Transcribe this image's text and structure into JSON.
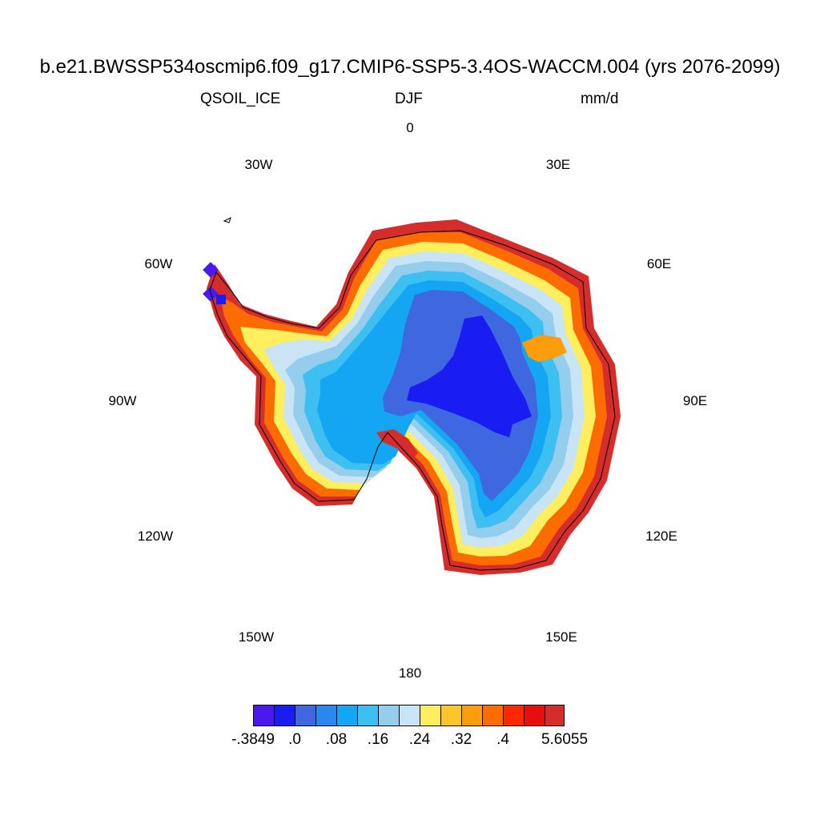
{
  "header": {
    "title": "b.e21.BWSSP534oscmip6.f09_g17.CMIP6-SSP5-3.4OS-WACCM.004 (yrs 2076-2099)",
    "variable": "QSOIL_ICE",
    "season": "DJF",
    "units": "mm/d"
  },
  "longitude_labels": [
    "0",
    "30E",
    "60E",
    "90E",
    "120E",
    "150E",
    "180",
    "150W",
    "120W",
    "90W",
    "60W",
    "30W"
  ],
  "colorbar": {
    "colors": [
      "#4b19ee",
      "#1a1df2",
      "#3e67e0",
      "#2b87f0",
      "#14a6f2",
      "#3ebff2",
      "#95cdec",
      "#c9e4f4",
      "#ffef5e",
      "#fec52a",
      "#fd9d0c",
      "#fd6c00",
      "#fd2800",
      "#e60f0d",
      "#d52c2c"
    ],
    "labels": [
      "-.3849",
      ".0",
      ".08",
      ".16",
      ".24",
      ".32",
      ".4",
      "5.6055"
    ]
  },
  "chart_data": {
    "type": "heatmap",
    "projection": "south polar stereographic",
    "region": "Antarctica",
    "title": "b.e21.BWSSP534oscmip6.f09_g17.CMIP6-SSP5-3.4OS-WACCM.004 (yrs 2076-2099)",
    "variable": "QSOIL_ICE",
    "season": "DJF",
    "units": "mm/d",
    "levels": [
      -0.3849,
      0.0,
      0.08,
      0.16,
      0.24,
      0.32,
      0.4,
      5.6055
    ],
    "pattern": "lowest values (about 0 to .04) over the East Antarctic plateau interior, increasing outward to .16-.24 inland of the coast, and highest values (.32 to 5.6055) along the coastal margins; negative values at the tip of the Antarctic Peninsula"
  }
}
